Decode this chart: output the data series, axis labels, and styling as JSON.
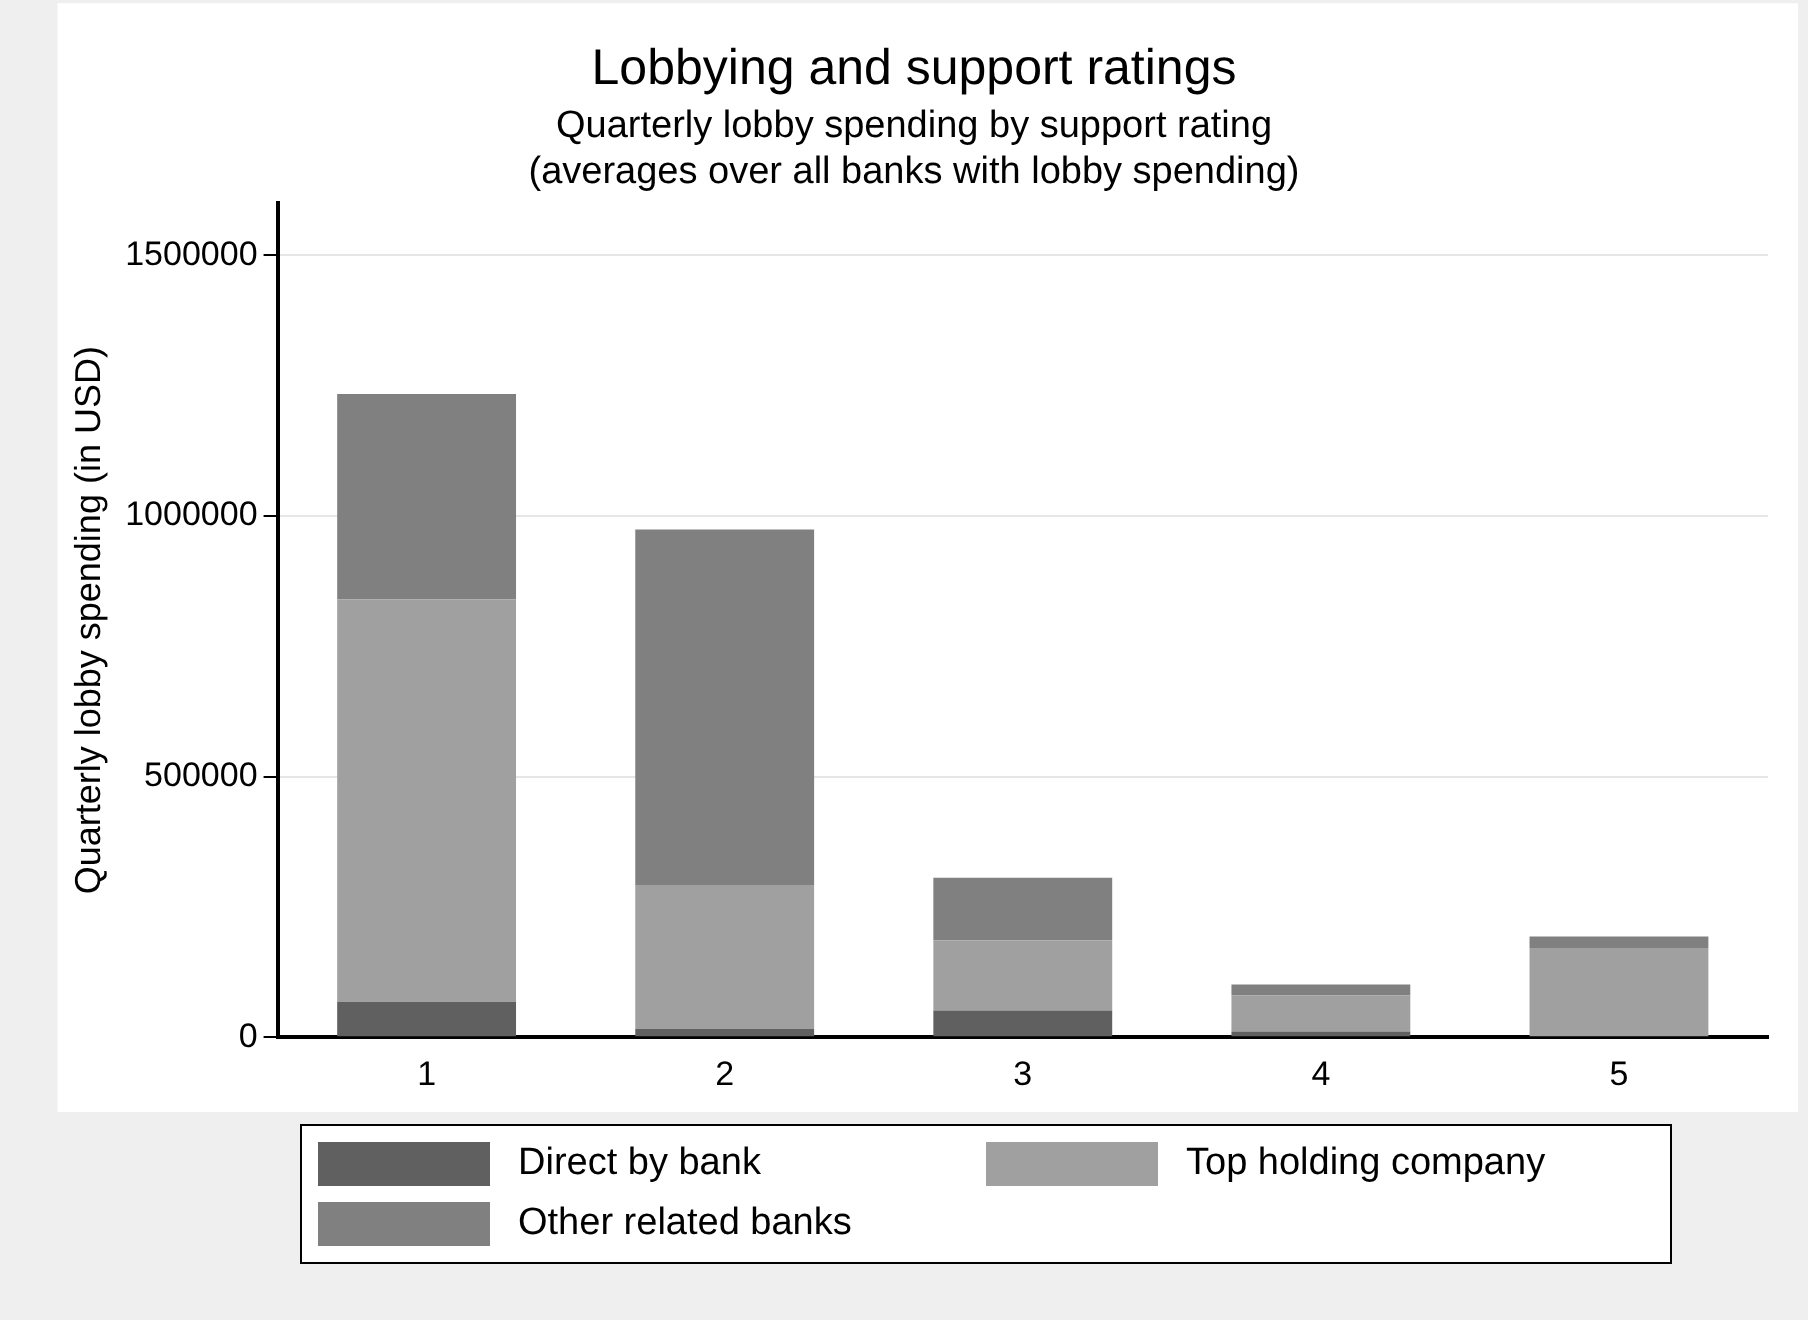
{
  "chart_data": {
    "type": "bar",
    "title": "Lobbying and support ratings",
    "subtitle": "Quarterly lobby spending by support rating\n(averages over all banks with lobby spending)",
    "ylabel": "Quarterly lobby spending (in USD)",
    "categories": [
      "1",
      "2",
      "3",
      "4",
      "5"
    ],
    "stacked": true,
    "series": [
      {
        "name": "Direct by bank",
        "color": "#606060",
        "values": [
          68000,
          16000,
          51000,
          11000,
          2000
        ]
      },
      {
        "name": "Top holding company",
        "color": "#a0a0a0",
        "values": [
          772000,
          276000,
          135000,
          69000,
          169000
        ]
      },
      {
        "name": "Other related banks",
        "color": "#808080",
        "values": [
          394000,
          682000,
          120000,
          21000,
          22000
        ]
      }
    ],
    "ylim": [
      0,
      1600000
    ],
    "yticks": [
      0,
      500000,
      1000000,
      1500000
    ],
    "grid": "y",
    "legend": "bottom"
  }
}
